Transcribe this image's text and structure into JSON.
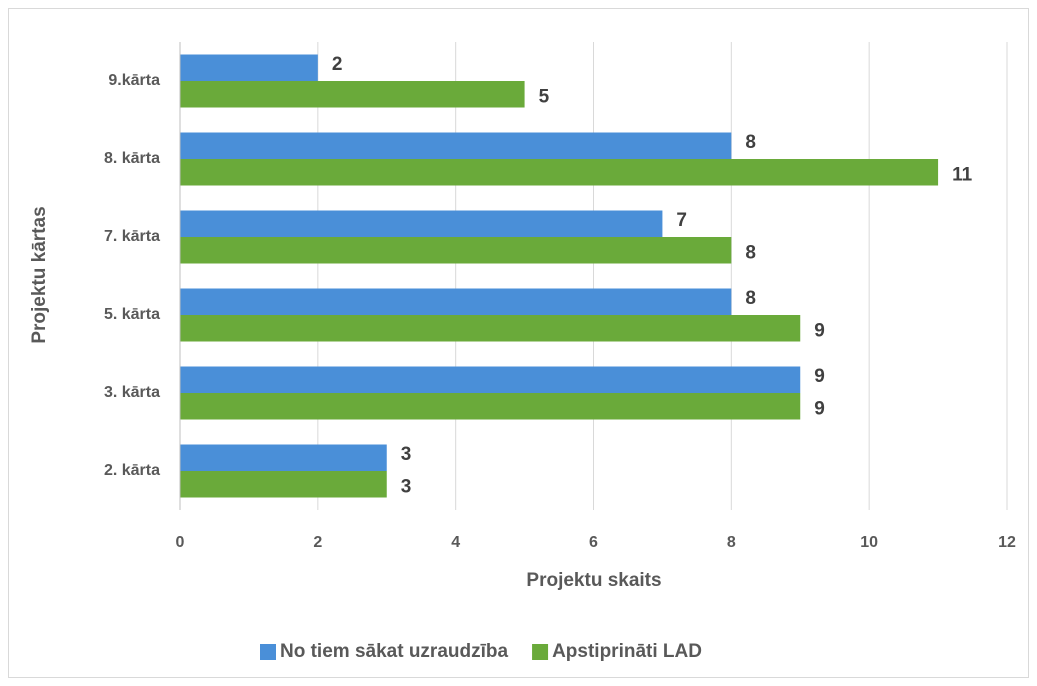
{
  "chart_data": {
    "type": "hbar",
    "categories": [
      "9.kārta",
      "8. kārta",
      "7. kārta",
      "5. kārta",
      "3. kārta",
      "2. kārta"
    ],
    "series": [
      {
        "name": "No tiem sākat uzraudzība",
        "color": "#4a8fd8",
        "values": [
          2,
          8,
          7,
          8,
          9,
          3
        ]
      },
      {
        "name": "Apstiprināti LAD",
        "color": "#6aaa3a",
        "values": [
          5,
          11,
          8,
          9,
          9,
          3
        ]
      }
    ],
    "xlim": [
      0,
      12
    ],
    "xticks": [
      0,
      2,
      4,
      6,
      8,
      10,
      12
    ],
    "grid": true,
    "xlabel": "Projektu skaits",
    "ylabel": "Projektu kārtas",
    "legend": "bottom"
  }
}
